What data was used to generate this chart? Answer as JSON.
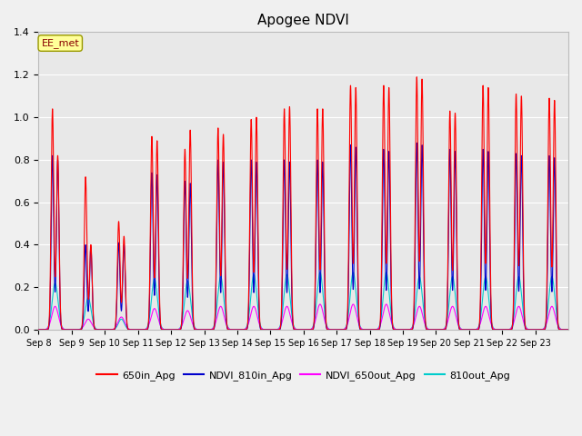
{
  "title": "Apogee NDVI",
  "annotation": "EE_met",
  "fig_facecolor": "#f0f0f0",
  "plot_facecolor": "#e8e8e8",
  "ylim": [
    0.0,
    1.4
  ],
  "yticks": [
    0.0,
    0.2,
    0.4,
    0.6,
    0.8,
    1.0,
    1.2,
    1.4
  ],
  "xtick_labels": [
    "Sep 8",
    "Sep 9",
    "Sep 10",
    "Sep 11",
    "Sep 12",
    "Sep 13",
    "Sep 14",
    "Sep 15",
    "Sep 16",
    "Sep 17",
    "Sep 18",
    "Sep 19",
    "Sep 20",
    "Sep 21",
    "Sep 22",
    "Sep 23"
  ],
  "n_days": 16,
  "red_peaks": [
    1.04,
    0.72,
    0.51,
    0.91,
    0.85,
    0.95,
    0.99,
    1.04,
    1.04,
    1.15,
    1.15,
    1.19,
    1.03,
    1.15,
    1.11,
    1.09
  ],
  "red_peaks2": [
    0.82,
    0.4,
    0.44,
    0.89,
    0.94,
    0.92,
    1.0,
    1.05,
    1.04,
    1.14,
    1.14,
    1.18,
    1.02,
    1.14,
    1.1,
    1.08
  ],
  "blue_peaks": [
    0.82,
    0.4,
    0.41,
    0.74,
    0.7,
    0.8,
    0.8,
    0.8,
    0.8,
    0.87,
    0.85,
    0.88,
    0.85,
    0.85,
    0.83,
    0.82
  ],
  "blue_peaks2": [
    0.8,
    0.39,
    0.4,
    0.73,
    0.69,
    0.79,
    0.79,
    0.79,
    0.79,
    0.86,
    0.84,
    0.87,
    0.84,
    0.84,
    0.82,
    0.81
  ],
  "mag_peaks": [
    0.11,
    0.05,
    0.06,
    0.1,
    0.09,
    0.11,
    0.11,
    0.11,
    0.12,
    0.12,
    0.12,
    0.11,
    0.11,
    0.11,
    0.11,
    0.11
  ],
  "cyan_peaks": [
    0.22,
    0.15,
    0.05,
    0.24,
    0.23,
    0.25,
    0.26,
    0.26,
    0.27,
    0.27,
    0.27,
    0.25,
    0.25,
    0.25,
    0.25,
    0.25
  ],
  "series_colors": [
    "#ff0000",
    "#0000cc",
    "#ff00ff",
    "#00cccc"
  ],
  "legend_labels": [
    "650in_Apg",
    "NDVI_810in_Apg",
    "NDVI_650out_Apg",
    "810out_Apg"
  ]
}
